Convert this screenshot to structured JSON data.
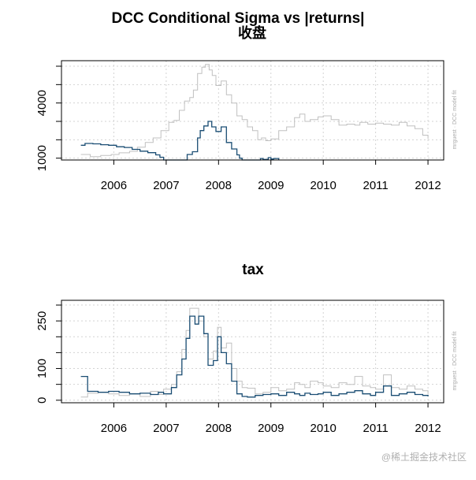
{
  "chart_data": [
    {
      "type": "line",
      "title": "DCC Conditional Sigma vs |returns|",
      "subtitle": "收盘",
      "xlabel": "",
      "ylabel": "",
      "x_ticks": [
        "2006",
        "2007",
        "2008",
        "2009",
        "2010",
        "2011",
        "2012"
      ],
      "y_ticks": [
        1000,
        2000,
        3000,
        4000,
        5000,
        6000
      ],
      "y_tick_labels": [
        "1000",
        "4000"
      ],
      "xlim": [
        2005.0,
        2012.3
      ],
      "ylim": [
        900,
        6300
      ],
      "grid": true,
      "side_text": "mrguest · DCC model fit",
      "series": [
        {
          "name": "|returns|",
          "color": "#c0c0c0",
          "x": [
            2005.37,
            2005.55,
            2005.75,
            2005.95,
            2006.1,
            2006.3,
            2006.45,
            2006.6,
            2006.75,
            2006.9,
            2007.05,
            2007.15,
            2007.25,
            2007.35,
            2007.45,
            2007.52,
            2007.6,
            2007.68,
            2007.75,
            2007.82,
            2007.88,
            2007.95,
            2008.05,
            2008.15,
            2008.25,
            2008.35,
            2008.45,
            2008.55,
            2008.65,
            2008.75,
            2008.82,
            2008.9,
            2009.0,
            2009.15,
            2009.3,
            2009.45,
            2009.55,
            2009.65,
            2009.75,
            2009.9,
            2010.0,
            2010.15,
            2010.3,
            2010.45,
            2010.6,
            2010.7,
            2010.85,
            2011.0,
            2011.15,
            2011.3,
            2011.45,
            2011.6,
            2011.75,
            2011.9,
            2012.0
          ],
          "values": [
            1200,
            1080,
            1150,
            1200,
            1290,
            1370,
            1600,
            1850,
            2100,
            2500,
            2950,
            3050,
            3600,
            4100,
            4300,
            4700,
            5600,
            5950,
            6100,
            5800,
            5500,
            4950,
            5200,
            4450,
            4000,
            3300,
            3100,
            2700,
            2500,
            2000,
            2100,
            1950,
            2050,
            2500,
            2700,
            3200,
            3400,
            3000,
            3100,
            3250,
            3300,
            3100,
            2800,
            2850,
            2800,
            2950,
            2850,
            2900,
            2850,
            2800,
            2950,
            2750,
            2600,
            2250,
            2050
          ]
        },
        {
          "name": "DCC conditional sigma",
          "color": "#1a4d73",
          "x": [
            2005.37,
            2005.45,
            2005.6,
            2005.75,
            2005.9,
            2006.05,
            2006.2,
            2006.35,
            2006.5,
            2006.65,
            2006.8,
            2006.88,
            2006.95,
            2007.3,
            2007.4,
            2007.5,
            2007.6,
            2007.65,
            2007.72,
            2007.8,
            2007.87,
            2007.95,
            2008.05,
            2008.15,
            2008.25,
            2008.35,
            2008.4,
            2008.45,
            2008.7,
            2008.8,
            2008.85,
            2008.95,
            2009.0,
            2009.05,
            2009.15
          ],
          "values": [
            1700,
            1800,
            1780,
            1730,
            1700,
            1620,
            1580,
            1480,
            1380,
            1300,
            1180,
            1050,
            900,
            900,
            1200,
            1350,
            2100,
            2500,
            2750,
            3000,
            2700,
            2450,
            2700,
            1850,
            1500,
            1180,
            1000,
            900,
            900,
            980,
            930,
            1030,
            950,
            980,
            900
          ]
        }
      ]
    },
    {
      "type": "line",
      "title": "tax",
      "xlabel": "",
      "ylabel": "",
      "x_ticks": [
        "2006",
        "2007",
        "2008",
        "2009",
        "2010",
        "2011",
        "2012"
      ],
      "y_ticks": [
        0,
        50,
        100,
        150,
        200,
        250,
        300
      ],
      "y_tick_labels": [
        "0",
        "100",
        "250"
      ],
      "xlim": [
        2005.0,
        2012.3
      ],
      "ylim": [
        -8,
        315
      ],
      "grid": true,
      "side_text": "mrguest · DCC model fit",
      "series": [
        {
          "name": "|returns|",
          "color": "#c0c0c0",
          "x": [
            2005.37,
            2005.5,
            2005.7,
            2005.9,
            2006.1,
            2006.3,
            2006.5,
            2006.7,
            2006.85,
            2006.95,
            2007.1,
            2007.2,
            2007.3,
            2007.38,
            2007.45,
            2007.55,
            2007.62,
            2007.72,
            2007.8,
            2007.9,
            2007.98,
            2008.05,
            2008.15,
            2008.25,
            2008.35,
            2008.45,
            2008.55,
            2008.7,
            2008.85,
            2009.0,
            2009.15,
            2009.3,
            2009.45,
            2009.55,
            2009.65,
            2009.75,
            2009.9,
            2010.0,
            2010.15,
            2010.3,
            2010.45,
            2010.6,
            2010.75,
            2010.9,
            2011.0,
            2011.15,
            2011.3,
            2011.45,
            2011.6,
            2011.75,
            2011.9,
            2012.0
          ],
          "values": [
            10,
            22,
            25,
            20,
            15,
            20,
            12,
            28,
            18,
            35,
            50,
            90,
            160,
            220,
            290,
            290,
            250,
            200,
            130,
            155,
            230,
            165,
            180,
            100,
            60,
            40,
            38,
            20,
            25,
            40,
            30,
            35,
            55,
            50,
            40,
            60,
            55,
            45,
            40,
            55,
            50,
            75,
            45,
            40,
            35,
            80,
            40,
            35,
            45,
            35,
            30,
            18
          ]
        },
        {
          "name": "DCC conditional sigma",
          "color": "#1a4d73",
          "x": [
            2005.37,
            2005.5,
            2005.7,
            2005.9,
            2006.1,
            2006.3,
            2006.5,
            2006.7,
            2006.85,
            2006.95,
            2007.1,
            2007.2,
            2007.3,
            2007.38,
            2007.45,
            2007.55,
            2007.62,
            2007.72,
            2007.8,
            2007.9,
            2007.98,
            2008.05,
            2008.15,
            2008.25,
            2008.35,
            2008.45,
            2008.55,
            2008.7,
            2008.85,
            2009.0,
            2009.15,
            2009.3,
            2009.45,
            2009.55,
            2009.65,
            2009.75,
            2009.9,
            2010.0,
            2010.15,
            2010.3,
            2010.45,
            2010.6,
            2010.75,
            2010.9,
            2011.0,
            2011.15,
            2011.3,
            2011.45,
            2011.6,
            2011.75,
            2011.9,
            2012.0
          ],
          "values": [
            75,
            28,
            25,
            28,
            25,
            20,
            22,
            18,
            25,
            20,
            40,
            80,
            130,
            195,
            265,
            240,
            265,
            210,
            110,
            125,
            200,
            150,
            115,
            60,
            20,
            12,
            10,
            15,
            18,
            20,
            15,
            25,
            20,
            15,
            22,
            18,
            20,
            25,
            15,
            20,
            25,
            30,
            20,
            15,
            25,
            45,
            15,
            20,
            25,
            18,
            15,
            12
          ]
        }
      ]
    }
  ],
  "watermark": "@稀土掘金技术社区"
}
